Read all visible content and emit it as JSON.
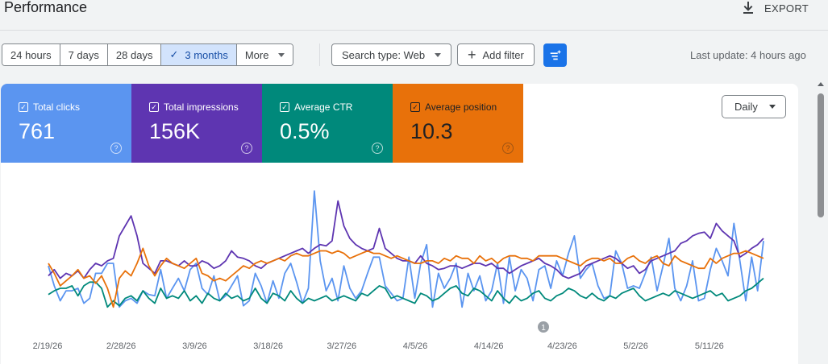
{
  "header": {
    "title": "Performance",
    "export_label": "EXPORT"
  },
  "toolbar": {
    "ranges": [
      "24 hours",
      "7 days",
      "28 days",
      "3 months",
      "More"
    ],
    "active_range": "3 months",
    "check_mark": "✓",
    "search_type": "Search type: Web",
    "add_filter": "Add filter",
    "last_update": "Last update: 4 hours ago"
  },
  "metrics": [
    {
      "label": "Total clicks",
      "value": "761",
      "color": "#5b95f0"
    },
    {
      "label": "Total impressions",
      "value": "156K",
      "color": "#5e35b1"
    },
    {
      "label": "Average CTR",
      "value": "0.5%",
      "color": "#00897b"
    },
    {
      "label": "Average position",
      "value": "10.3",
      "color": "#e8710a"
    }
  ],
  "granularity": "Daily",
  "annotation_marker": "1",
  "chart_data": {
    "type": "line",
    "x_ticks": [
      "2/19/26",
      "2/28/26",
      "3/9/26",
      "3/18/26",
      "3/27/26",
      "4/5/26",
      "4/14/26",
      "4/23/26",
      "5/2/26",
      "5/11/26"
    ],
    "annotations": [
      {
        "label": "1",
        "near": "4/23/26"
      }
    ],
    "series": [
      {
        "name": "Total clicks",
        "color": "#5b95f0",
        "values": [
          0.38,
          0.22,
          0.1,
          0.18,
          0.18,
          0.2,
          0.08,
          0.12,
          0.32,
          0.32,
          0.4,
          0.4,
          0.05,
          0.1,
          0.12,
          0.08,
          0.18,
          0.15,
          0.14,
          0.35,
          0.12,
          0.2,
          0.28,
          0.18,
          0.35,
          0.4,
          0.2,
          0.15,
          0.3,
          0.1,
          0.14,
          0.22,
          0.3,
          0.06,
          0.1,
          0.32,
          0.22,
          0.08,
          0.26,
          0.12,
          0.32,
          0.4,
          0.25,
          0.08,
          0.2,
          0.98,
          0.42,
          0.18,
          0.28,
          0.1,
          0.38,
          0.2,
          0.12,
          0.18,
          0.32,
          0.45,
          0.45,
          0.22,
          0.16,
          0.1,
          0.12,
          0.45,
          0.12,
          0.4,
          0.55,
          0.05,
          0.32,
          0.2,
          0.28,
          0.4,
          0.05,
          0.32,
          0.18,
          0.3,
          0.1,
          0.18,
          0.4,
          0.08,
          0.45,
          0.18,
          0.35,
          0.28,
          0.1,
          0.35,
          0.38,
          0.2,
          0.42,
          0.3,
          0.48,
          0.62,
          0.28,
          0.35,
          0.4,
          0.22,
          0.12,
          0.14,
          0.5,
          0.4,
          0.2,
          0.22,
          0.2,
          0.32,
          0.45,
          0.18,
          0.38,
          0.6,
          0.2,
          0.1,
          0.22,
          0.42,
          0.1,
          0.12,
          0.35,
          0.52,
          0.42,
          0.3,
          0.72,
          0.42,
          0.1,
          0.45,
          0.18,
          0.58
        ]
      },
      {
        "name": "Total impressions",
        "color": "#5e35b1",
        "values": [
          0.3,
          0.35,
          0.28,
          0.32,
          0.3,
          0.34,
          0.28,
          0.35,
          0.4,
          0.38,
          0.42,
          0.44,
          0.62,
          0.7,
          0.78,
          0.62,
          0.4,
          0.36,
          0.32,
          0.42,
          0.42,
          0.4,
          0.38,
          0.42,
          0.38,
          0.38,
          0.42,
          0.4,
          0.36,
          0.38,
          0.42,
          0.5,
          0.45,
          0.44,
          0.42,
          0.38,
          0.36,
          0.4,
          0.42,
          0.44,
          0.46,
          0.48,
          0.5,
          0.52,
          0.48,
          0.52,
          0.55,
          0.54,
          0.58,
          0.9,
          0.7,
          0.6,
          0.55,
          0.52,
          0.5,
          0.52,
          0.68,
          0.52,
          0.48,
          0.44,
          0.42,
          0.42,
          0.4,
          0.46,
          0.4,
          0.38,
          0.35,
          0.36,
          0.38,
          0.38,
          0.36,
          0.38,
          0.4,
          0.4,
          0.38,
          0.4,
          0.36,
          0.36,
          0.32,
          0.35,
          0.38,
          0.4,
          0.42,
          0.44,
          0.4,
          0.38,
          0.35,
          0.3,
          0.28,
          0.3,
          0.32,
          0.38,
          0.4,
          0.42,
          0.44,
          0.46,
          0.44,
          0.4,
          0.36,
          0.38,
          0.32,
          0.35,
          0.42,
          0.44,
          0.46,
          0.48,
          0.5,
          0.56,
          0.58,
          0.62,
          0.64,
          0.65,
          0.6,
          0.72,
          0.66,
          0.62,
          0.58,
          0.45,
          0.48,
          0.52,
          0.55,
          0.6
        ]
      },
      {
        "name": "Average CTR",
        "color": "#00897b",
        "values": [
          0.15,
          0.18,
          0.2,
          0.2,
          0.22,
          0.14,
          0.22,
          0.25,
          0.25,
          0.2,
          0.05,
          0.1,
          0.06,
          0.12,
          0.14,
          0.1,
          0.18,
          0.12,
          0.08,
          0.2,
          0.12,
          0.14,
          0.12,
          0.18,
          0.1,
          0.14,
          0.08,
          0.16,
          0.12,
          0.1,
          0.16,
          0.12,
          0.14,
          0.1,
          0.12,
          0.2,
          0.12,
          0.08,
          0.16,
          0.14,
          0.1,
          0.18,
          0.12,
          0.08,
          0.12,
          0.1,
          0.12,
          0.14,
          0.1,
          0.12,
          0.14,
          0.12,
          0.1,
          0.16,
          0.14,
          0.18,
          0.22,
          0.2,
          0.12,
          0.14,
          0.12,
          0.1,
          0.08,
          0.16,
          0.14,
          0.1,
          0.12,
          0.16,
          0.2,
          0.22,
          0.16,
          0.14,
          0.2,
          0.18,
          0.14,
          0.1,
          0.18,
          0.12,
          0.08,
          0.14,
          0.1,
          0.12,
          0.16,
          0.18,
          0.12,
          0.1,
          0.14,
          0.16,
          0.2,
          0.18,
          0.14,
          0.12,
          0.16,
          0.12,
          0.1,
          0.14,
          0.12,
          0.16,
          0.18,
          0.2,
          0.14,
          0.1,
          0.12,
          0.14,
          0.16,
          0.14,
          0.18,
          0.16,
          0.14,
          0.12,
          0.14,
          0.16,
          0.18,
          0.14,
          0.16,
          0.1,
          0.12,
          0.14,
          0.18,
          0.2,
          0.24,
          0.28
        ]
      },
      {
        "name": "Average position",
        "color": "#e8710a",
        "values": [
          0.4,
          0.32,
          0.22,
          0.26,
          0.3,
          0.35,
          0.28,
          0.3,
          0.24,
          0.3,
          0.2,
          0.05,
          0.28,
          0.34,
          0.3,
          0.4,
          0.52,
          0.38,
          0.3,
          0.38,
          0.44,
          0.4,
          0.38,
          0.36,
          0.4,
          0.44,
          0.32,
          0.3,
          0.26,
          0.28,
          0.26,
          0.3,
          0.34,
          0.38,
          0.36,
          0.4,
          0.42,
          0.4,
          0.42,
          0.44,
          0.42,
          0.46,
          0.48,
          0.46,
          0.46,
          0.48,
          0.5,
          0.5,
          0.48,
          0.5,
          0.48,
          0.44,
          0.46,
          0.48,
          0.5,
          0.48,
          0.48,
          0.46,
          0.44,
          0.46,
          0.44,
          0.42,
          0.4,
          0.4,
          0.42,
          0.42,
          0.4,
          0.44,
          0.42,
          0.46,
          0.44,
          0.44,
          0.4,
          0.46,
          0.42,
          0.44,
          0.4,
          0.44,
          0.46,
          0.46,
          0.44,
          0.44,
          0.42,
          0.46,
          0.46,
          0.46,
          0.46,
          0.44,
          0.42,
          0.4,
          0.38,
          0.42,
          0.44,
          0.44,
          0.42,
          0.44,
          0.4,
          0.4,
          0.44,
          0.46,
          0.42,
          0.4,
          0.44,
          0.46,
          0.4,
          0.38,
          0.46,
          0.42,
          0.4,
          0.38,
          0.36,
          0.36,
          0.44,
          0.4,
          0.44,
          0.46,
          0.48,
          0.48,
          0.5,
          0.48,
          0.46,
          0.44
        ]
      }
    ]
  }
}
